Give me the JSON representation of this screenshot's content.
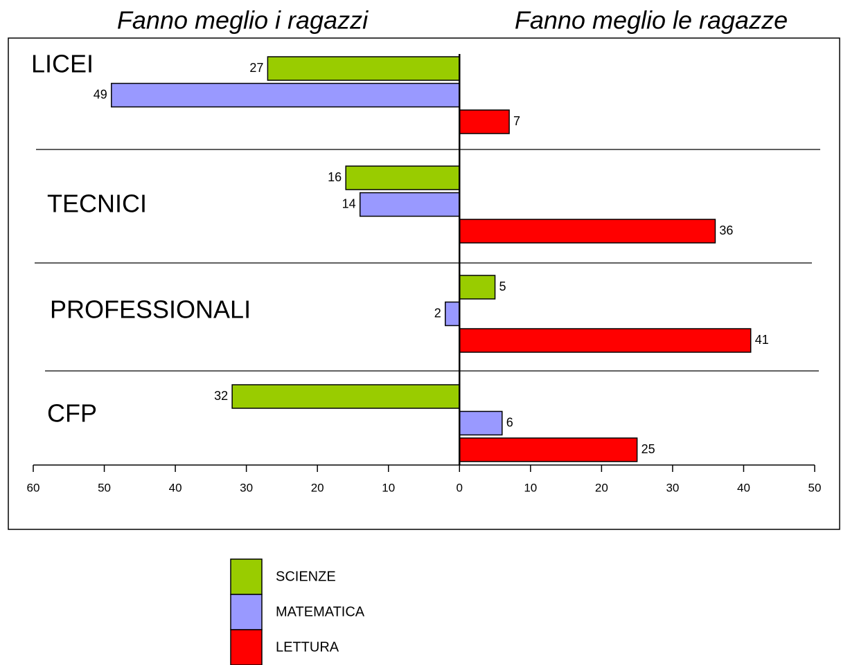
{
  "chart_data": {
    "type": "hbar",
    "annotations": [
      "Fanno meglio i ragazzi",
      "Fanno meglio le ragazze"
    ],
    "categories": [
      "LICEI",
      "TECNICI",
      "PROFESSIONALI",
      "CFP"
    ],
    "series": [
      {
        "name": "SCIENZE",
        "color": "#99cc00",
        "values": [
          -27,
          -16,
          5,
          -32
        ],
        "value_labels": [
          "27",
          "16",
          "5",
          "32"
        ]
      },
      {
        "name": "MATEMATICA",
        "color": "#9999ff",
        "values": [
          -49,
          -14,
          -2,
          6
        ],
        "value_labels": [
          "49",
          "14",
          "2",
          "6"
        ]
      },
      {
        "name": "LETTURA",
        "color": "#ff0000",
        "values": [
          7,
          36,
          41,
          25
        ],
        "value_labels": [
          "7",
          "36",
          "41",
          "25"
        ]
      }
    ],
    "xlim": [
      -60,
      50
    ],
    "xticks": [
      {
        "value": -60,
        "label": "60"
      },
      {
        "value": -50,
        "label": "50"
      },
      {
        "value": -40,
        "label": "40"
      },
      {
        "value": -30,
        "label": "30"
      },
      {
        "value": -20,
        "label": "20"
      },
      {
        "value": -10,
        "label": "10"
      },
      0,
      10,
      20,
      30,
      40,
      50
    ]
  }
}
